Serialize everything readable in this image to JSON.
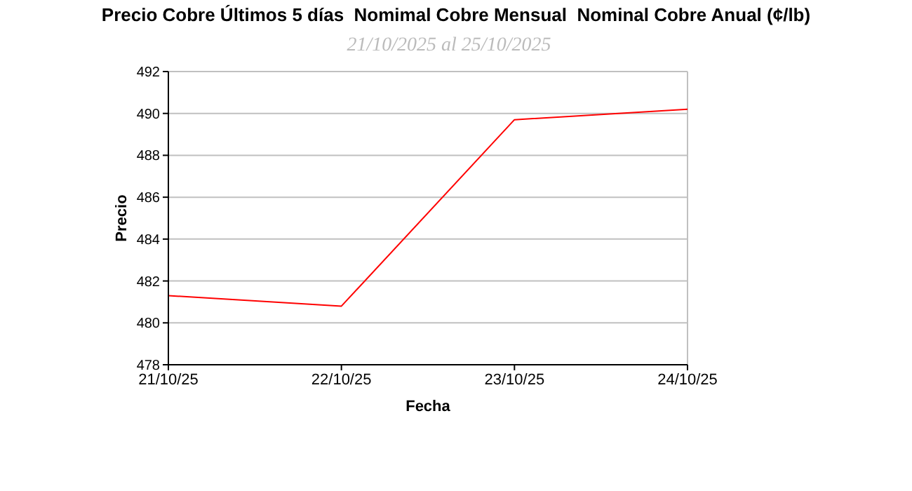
{
  "chart_data": {
    "type": "line",
    "title": "Precio Cobre Últimos 5 días  Nomimal Cobre Mensual  Nominal Cobre Anual (¢/lb)",
    "subtitle": "21/10/2025 al 25/10/2025",
    "xlabel": "Fecha",
    "ylabel": "Precio",
    "categories": [
      "21/10/25",
      "22/10/25",
      "23/10/25",
      "24/10/25"
    ],
    "series": [
      {
        "color": "#ff0000",
        "values": [
          481.3,
          480.8,
          489.7,
          490.2
        ]
      }
    ],
    "ylim": [
      478,
      492
    ],
    "yticks": [
      478,
      480,
      482,
      484,
      486,
      488,
      490,
      492
    ],
    "grid": "y"
  }
}
